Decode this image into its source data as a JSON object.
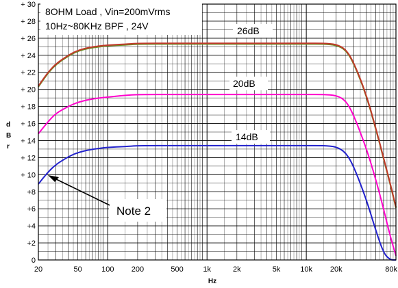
{
  "chart_data": {
    "type": "line",
    "title_lines": [
      "8OHM Load , Vin=200mVrms",
      "10Hz~80KHz BPF , 24V"
    ],
    "xlabel": "Hz",
    "ylabel_chars": [
      "d",
      "B",
      "r"
    ],
    "x_scale": "log",
    "xlim": [
      20,
      80000
    ],
    "ylim": [
      0,
      30
    ],
    "grid": true,
    "x_tick_labels": [
      {
        "v": 20,
        "label": "20"
      },
      {
        "v": 50,
        "label": "50"
      },
      {
        "v": 100,
        "label": "100"
      },
      {
        "v": 200,
        "label": "200"
      },
      {
        "v": 500,
        "label": "500"
      },
      {
        "v": 1000,
        "label": "1k"
      },
      {
        "v": 2000,
        "label": "2k"
      },
      {
        "v": 5000,
        "label": "5k"
      },
      {
        "v": 10000,
        "label": "10k"
      },
      {
        "v": 20000,
        "label": "20k"
      },
      {
        "v": 80000,
        "label": "80k"
      }
    ],
    "y_tick_labels": [
      {
        "v": 30,
        "label": "+ 30"
      },
      {
        "v": 28,
        "label": "+ 28"
      },
      {
        "v": 26,
        "label": "+ 26"
      },
      {
        "v": 24,
        "label": "+ 24"
      },
      {
        "v": 22,
        "label": "+ 22"
      },
      {
        "v": 20,
        "label": "+ 20"
      },
      {
        "v": 18,
        "label": "+ 18"
      },
      {
        "v": 16,
        "label": "+ 16"
      },
      {
        "v": 14,
        "label": "+ 14"
      },
      {
        "v": 12,
        "label": "+ 12"
      },
      {
        "v": 10,
        "label": "+ 10"
      },
      {
        "v": 8,
        "label": "+8"
      },
      {
        "v": 6,
        "label": "+6"
      },
      {
        "v": 4,
        "label": "+4"
      },
      {
        "v": 2,
        "label": "+2"
      },
      {
        "v": 0,
        "label": "0"
      }
    ],
    "series": [
      {
        "name": "26dB",
        "color": "#c0392b",
        "secondary_color": "#6b8e23",
        "x": [
          20,
          25,
          30,
          40,
          50,
          70,
          100,
          150,
          200,
          500,
          1000,
          5000,
          10000,
          15000,
          20000,
          25000,
          30000,
          40000,
          50000,
          60000,
          70000,
          80000
        ],
        "y": [
          20.4,
          22.0,
          23.0,
          24.0,
          24.6,
          25.0,
          25.2,
          25.3,
          25.4,
          25.4,
          25.4,
          25.4,
          25.4,
          25.4,
          25.3,
          24.7,
          23.2,
          19.5,
          15.5,
          12.0,
          9.0,
          6.2
        ]
      },
      {
        "name": "20dB",
        "color": "#ff00cc",
        "x": [
          20,
          25,
          30,
          40,
          50,
          70,
          100,
          150,
          200,
          500,
          1000,
          5000,
          10000,
          15000,
          20000,
          25000,
          30000,
          40000,
          50000,
          60000,
          70000,
          80000
        ],
        "y": [
          14.8,
          16.2,
          17.2,
          18.0,
          18.5,
          18.9,
          19.1,
          19.3,
          19.4,
          19.4,
          19.4,
          19.4,
          19.4,
          19.4,
          19.3,
          18.7,
          17.0,
          13.2,
          9.5,
          6.0,
          2.8,
          0.5
        ]
      },
      {
        "name": "14dB",
        "color": "#2222cc",
        "x": [
          20,
          25,
          30,
          40,
          50,
          70,
          100,
          150,
          200,
          500,
          1000,
          5000,
          10000,
          15000,
          20000,
          25000,
          30000,
          40000,
          50000,
          60000,
          70000,
          80000
        ],
        "y": [
          8.9,
          10.3,
          11.2,
          12.1,
          12.6,
          13.0,
          13.2,
          13.3,
          13.4,
          13.4,
          13.4,
          13.4,
          13.4,
          13.4,
          13.3,
          12.6,
          11.0,
          7.2,
          3.5,
          0.8,
          0,
          0
        ]
      }
    ],
    "annotation": {
      "text": "Note 2",
      "arrow_target": {
        "x": 24,
        "y": 10
      }
    }
  }
}
